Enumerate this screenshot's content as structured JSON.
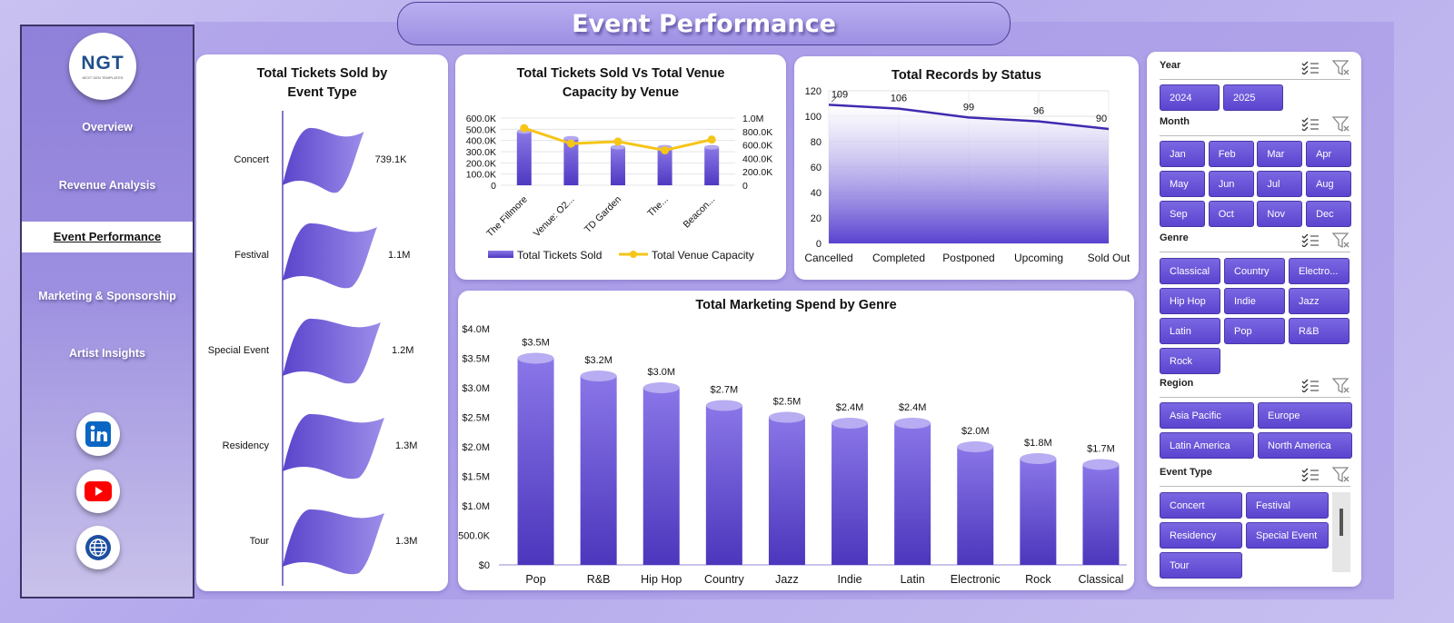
{
  "header": {
    "title": "Event Performance"
  },
  "sidebar": {
    "logo": {
      "text": "NGT",
      "tagline": "NEXT GEN TEMPLATES"
    },
    "items": [
      {
        "label": "Overview",
        "active": false
      },
      {
        "label": "Revenue Analysis",
        "active": false
      },
      {
        "label": "Event Performance",
        "active": true
      },
      {
        "label": "Marketing & Sponsorship",
        "active": false
      },
      {
        "label": "Artist Insights",
        "active": false
      }
    ],
    "social": [
      {
        "icon": "linkedin-icon",
        "color": "#0a66c2"
      },
      {
        "icon": "youtube-icon",
        "color": "#ff0000"
      },
      {
        "icon": "globe-icon",
        "color": "#1d4fa0"
      }
    ]
  },
  "charts": {
    "tickets_by_type": {
      "title": "Total Tickets Sold by Event Type",
      "chart_data": {
        "type": "bar",
        "categories": [
          "Concert",
          "Festival",
          "Special Event",
          "Residency",
          "Tour"
        ],
        "values": [
          739100,
          1100000,
          1200000,
          1300000,
          1300000
        ],
        "data_labels": [
          "739.1K",
          "1.1M",
          "1.2M",
          "1.3M",
          "1.3M"
        ]
      }
    },
    "tickets_vs_capacity": {
      "title": "Total Tickets Sold Vs Total Venue Capacity by Venue",
      "chart_data": {
        "type": "bar",
        "categories": [
          "The Fillmore",
          "Venue: O2...",
          "TD Garden",
          "The...",
          "Beacon..."
        ],
        "series": [
          {
            "name": "Total Tickets Sold",
            "type": "bar",
            "axis": "left",
            "values": [
              480000,
              420000,
              340000,
              340000,
              340000
            ]
          },
          {
            "name": "Total Venue Capacity",
            "type": "line",
            "axis": "right",
            "values": [
              850000,
              620000,
              650000,
              520000,
              680000
            ]
          }
        ],
        "left_ticks": [
          "0",
          "100.0K",
          "200.0K",
          "300.0K",
          "400.0K",
          "500.0K",
          "600.0K"
        ],
        "right_ticks": [
          "0",
          "200.0K",
          "400.0K",
          "600.0K",
          "800.0K",
          "1.0M"
        ],
        "ylim_left": [
          0,
          600000
        ],
        "ylim_right": [
          0,
          1000000
        ],
        "legend": "bottom",
        "colors": {
          "bar": "#6a55d8",
          "line": "#f5c518"
        }
      }
    },
    "records_by_status": {
      "title": "Total Records by Status",
      "chart_data": {
        "type": "area",
        "categories": [
          "Cancelled",
          "Completed",
          "Postponed",
          "Upcoming",
          "Sold Out"
        ],
        "values": [
          109,
          106,
          99,
          96,
          90
        ],
        "y_ticks": [
          "0",
          "20",
          "40",
          "60",
          "80",
          "100",
          "120"
        ],
        "ylim": [
          0,
          120
        ],
        "grid": true
      }
    },
    "marketing_by_genre": {
      "title": "Total Marketing Spend by Genre",
      "chart_data": {
        "type": "bar",
        "categories": [
          "Pop",
          "R&B",
          "Hip Hop",
          "Country",
          "Jazz",
          "Indie",
          "Latin",
          "Electronic",
          "Rock",
          "Classical"
        ],
        "values": [
          3500000,
          3200000,
          3000000,
          2700000,
          2500000,
          2400000,
          2400000,
          2000000,
          1800000,
          1700000
        ],
        "data_labels": [
          "$3.5M",
          "$3.2M",
          "$3.0M",
          "$2.7M",
          "$2.5M",
          "$2.4M",
          "$2.4M",
          "$2.0M",
          "$1.8M",
          "$1.7M"
        ],
        "y_ticks": [
          "$0",
          "$500.0K",
          "$1.0M",
          "$1.5M",
          "$2.0M",
          "$2.5M",
          "$3.0M",
          "$3.5M",
          "$4.0M"
        ],
        "ylim": [
          0,
          4000000
        ]
      }
    }
  },
  "slicers": {
    "year": {
      "label": "Year",
      "options": [
        "2024",
        "2025"
      ]
    },
    "month": {
      "label": "Month",
      "options": [
        "Jan",
        "Feb",
        "Mar",
        "Apr",
        "May",
        "Jun",
        "Jul",
        "Aug",
        "Sep",
        "Oct",
        "Nov",
        "Dec"
      ]
    },
    "genre": {
      "label": "Genre",
      "options": [
        "Classical",
        "Country",
        "Electro...",
        "Hip Hop",
        "Indie",
        "Jazz",
        "Latin",
        "Pop",
        "R&B",
        "Rock"
      ]
    },
    "region": {
      "label": "Region",
      "options": [
        "Asia Pacific",
        "Europe",
        "Latin America",
        "North America"
      ]
    },
    "event_type": {
      "label": "Event Type",
      "options": [
        "Concert",
        "Festival",
        "Residency",
        "Special Event",
        "Tour"
      ]
    }
  },
  "colors": {
    "accent": "#5b44cf",
    "accent_light": "#9a8ae6",
    "panel": "#ffffff"
  }
}
